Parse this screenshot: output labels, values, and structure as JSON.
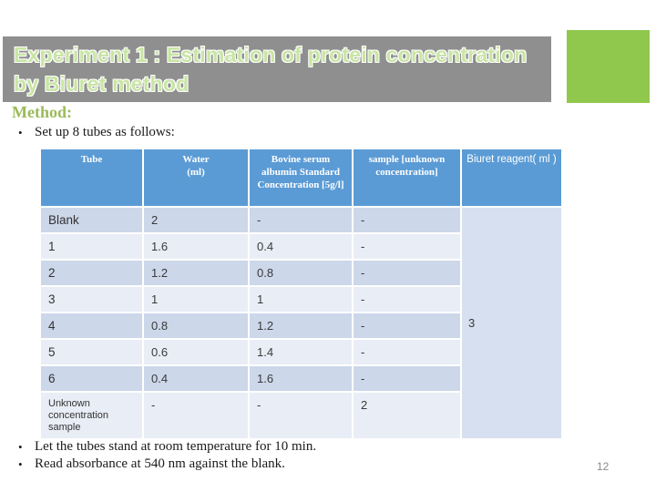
{
  "slide": {
    "title": "Experiment 1 : Estimation of protein concentration by Biuret method",
    "section_heading": "Method:",
    "bullet_intro": "Set up 8 tubes as follows:",
    "bullets_bottom": [
      "Let the tubes stand at room temperature for 10 min.",
      "Read absorbance at 540 nm against the blank."
    ],
    "page_number": "12"
  },
  "table": {
    "headers": [
      "Tube",
      "Water\n(ml)",
      "Bovine serum albumin Standard Concentration [5g/l]",
      "sample [unknown concentration]",
      "Biuret reagent( ml )"
    ],
    "merged_reagent_value": "3",
    "rows": [
      {
        "tube": "Blank",
        "water": "2",
        "bsa": "-",
        "sample": "-"
      },
      {
        "tube": "1",
        "water": "1.6",
        "bsa": "0.4",
        "sample": "-"
      },
      {
        "tube": "2",
        "water": "1.2",
        "bsa": "0.8",
        "sample": "-"
      },
      {
        "tube": "3",
        "water": "1",
        "bsa": "1",
        "sample": "-"
      },
      {
        "tube": "4",
        "water": "0.8",
        "bsa": "1.2",
        "sample": "-"
      },
      {
        "tube": "5",
        "water": "0.6",
        "bsa": "1.4",
        "sample": "-"
      },
      {
        "tube": "6",
        "water": "0.4",
        "bsa": "1.6",
        "sample": "-"
      },
      {
        "tube": "Unknown concentration sample",
        "water": "-",
        "bsa": "-",
        "sample": "2"
      }
    ]
  },
  "colors": {
    "banner_gray": "#8f8f8f",
    "title_text_green": "#c9e5a5",
    "accent_green_block": "#90c84e",
    "method_heading_green": "#9bbb59",
    "table_header_blue": "#5b9bd5",
    "row_band_dark": "#ccd7e9",
    "row_band_light": "#e9edf6",
    "merged_cell_blue": "#d6e0f0"
  }
}
